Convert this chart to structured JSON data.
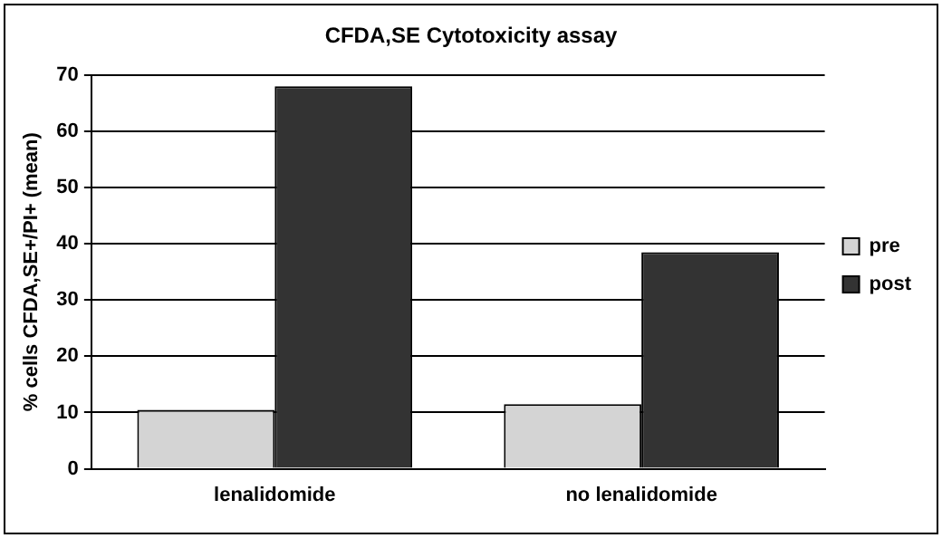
{
  "chart_data": {
    "type": "bar",
    "title": "CFDA,SE Cytotoxicity assay",
    "ylabel": "% cells CFDA,SE+/PI+ (mean)",
    "categories": [
      "lenalidomide",
      "no lenalidomide"
    ],
    "series": [
      {
        "name": "pre",
        "color": "#d4d4d4",
        "values": [
          10.5,
          11.5
        ]
      },
      {
        "name": "post",
        "color": "#333333",
        "values": [
          68,
          38.5
        ]
      }
    ],
    "ylim": [
      0,
      70
    ],
    "yticks": [
      0,
      10,
      20,
      30,
      40,
      50,
      60,
      70
    ],
    "grid": "y",
    "legend": "right"
  }
}
